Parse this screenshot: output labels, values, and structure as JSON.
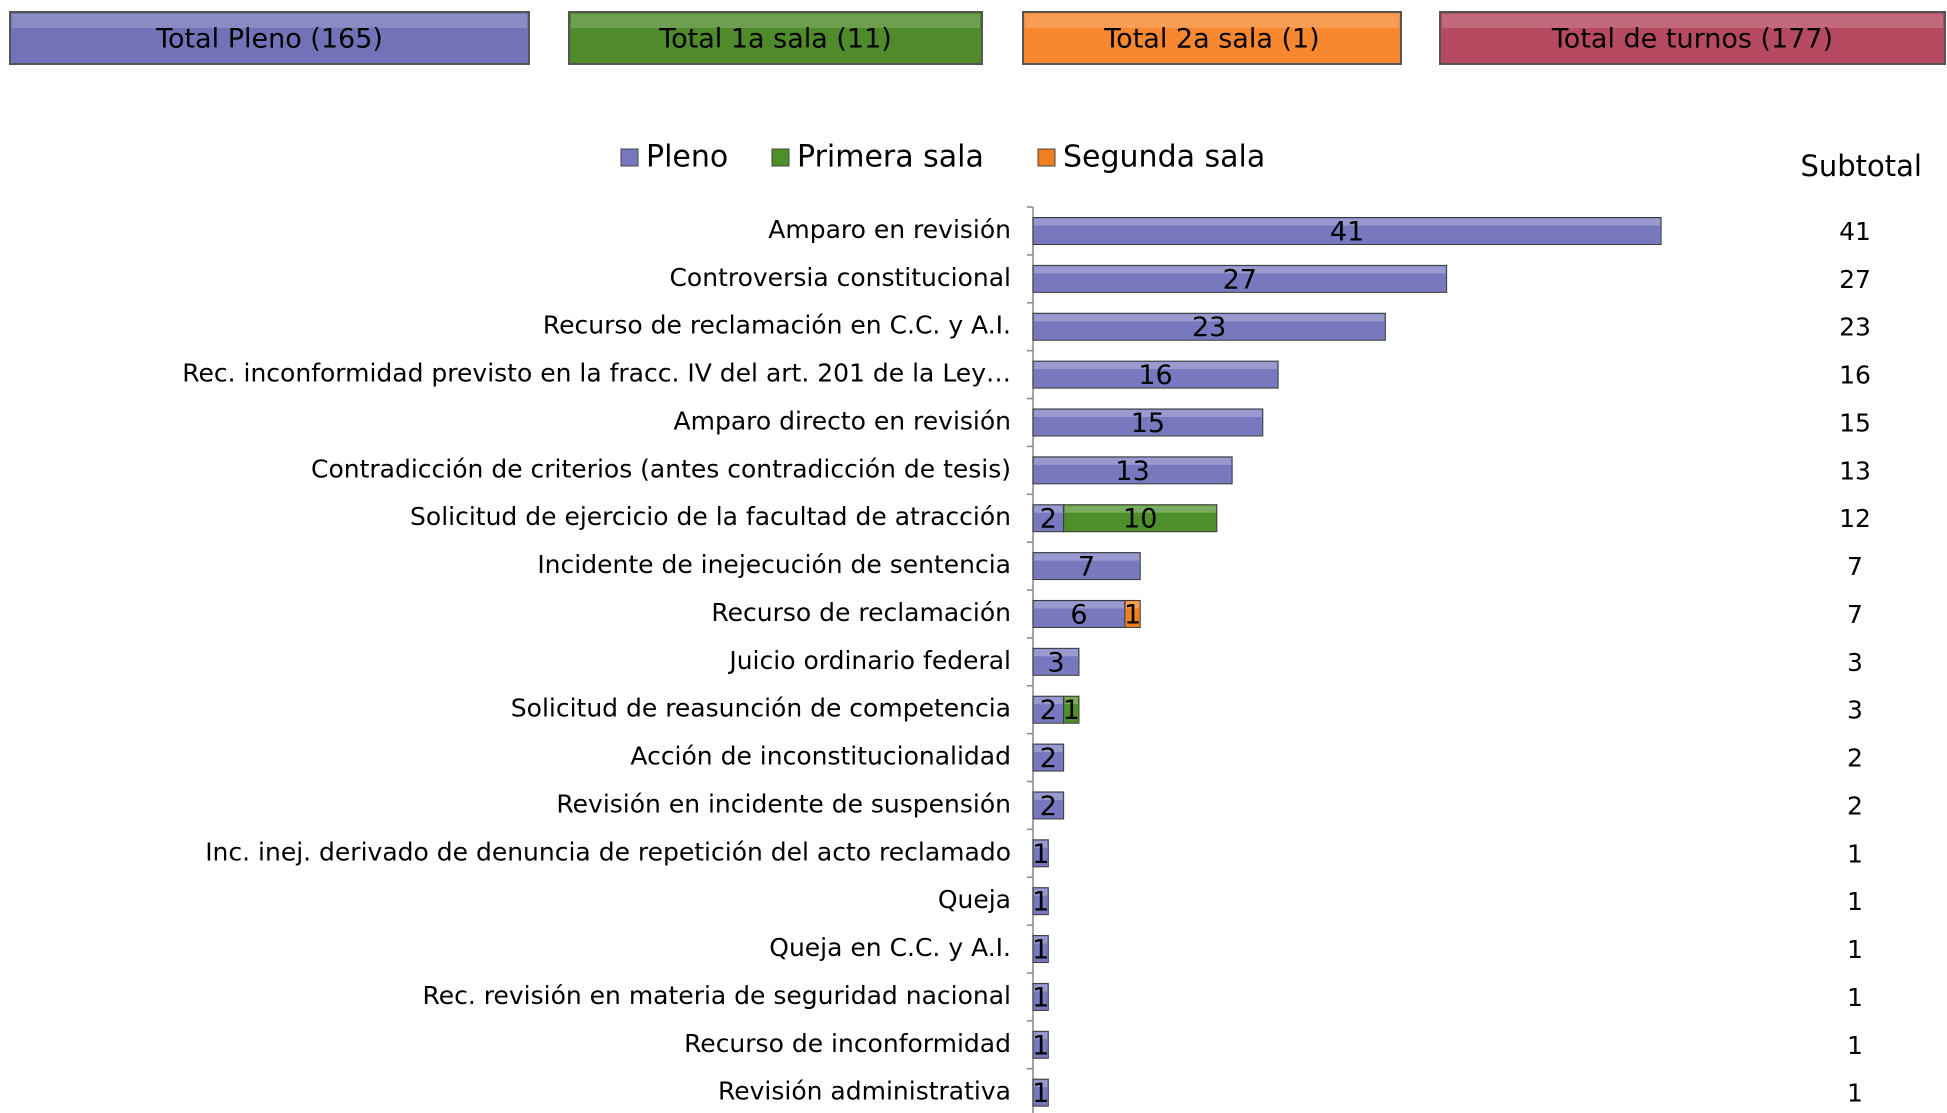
{
  "buttons": [
    {
      "label": "Total Pleno (165)",
      "color": "#7272b8",
      "text_color": "#ffffff"
    },
    {
      "label": "Total 1a sala (11)",
      "color": "#4f8a2b",
      "text_color": "#ffffff"
    },
    {
      "label": "Total 2a sala (1)",
      "color": "#f7882f",
      "text_color": "#000000"
    },
    {
      "label": "Total de turnos  (177)",
      "color": "#b54a60",
      "text_color": "#ffffff"
    }
  ],
  "chart_data": {
    "type": "stacked_barh",
    "categories": [
      "Amparo en revisión",
      "Controversia constitucional",
      "Recurso de reclamación en C.C. y A.I.",
      "Rec. inconformidad previsto en la fracc. IV del art. 201 de la Ley…",
      "Amparo directo en revisión",
      "Contradicción de criterios (antes contradicción de tesis)",
      "Solicitud de ejercicio de la facultad de atracción",
      "Incidente de inejecución de sentencia",
      "Recurso de reclamación",
      "Juicio ordinario federal",
      "Solicitud de reasunción de competencia",
      "Acción de inconstitucionalidad",
      "Revisión en incidente de suspensión",
      "Inc. inej. derivado de denuncia de repetición del acto reclamado",
      "Queja",
      "Queja en C.C. y A.I.",
      "Rec. revisión en materia de seguridad nacional",
      "Recurso de inconformidad",
      "Revisión administrativa"
    ],
    "series": [
      {
        "name": "Pleno",
        "color": "#7878be",
        "values": [
          41,
          27,
          23,
          16,
          15,
          13,
          2,
          7,
          6,
          3,
          2,
          2,
          2,
          1,
          1,
          1,
          1,
          1,
          1
        ]
      },
      {
        "name": "Primera sala",
        "color": "#4f8f2a",
        "values": [
          null,
          null,
          null,
          null,
          null,
          null,
          10,
          null,
          null,
          null,
          1,
          null,
          null,
          null,
          null,
          null,
          null,
          null,
          null
        ]
      },
      {
        "name": "Segunda sala",
        "color": "#f0801f",
        "values": [
          null,
          null,
          null,
          null,
          null,
          null,
          null,
          null,
          1,
          null,
          null,
          null,
          null,
          null,
          null,
          null,
          null,
          null,
          null
        ]
      }
    ],
    "xlim": [
      0,
      50
    ],
    "legend": "top",
    "subtotal_title": "Subtotal",
    "subtotals": [
      41,
      27,
      23,
      16,
      15,
      13,
      12,
      7,
      7,
      3,
      3,
      2,
      2,
      1,
      1,
      1,
      1,
      1,
      1
    ]
  }
}
